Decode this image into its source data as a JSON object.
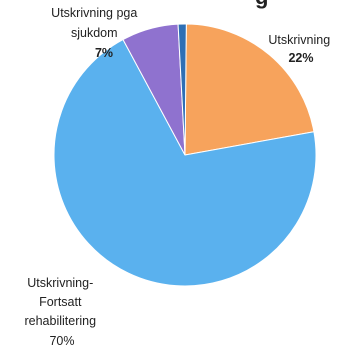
{
  "chart_data": {
    "type": "pie",
    "title": "g",
    "slices": [
      {
        "label": "Utskrivning",
        "percent_label": "22%",
        "value": 22,
        "color": "#f7a35c"
      },
      {
        "label": "Utskrivning- Fortsatt rehabilitering",
        "percent_label": "70%",
        "value": 70,
        "color": "#5ab1ee"
      },
      {
        "label": "Utskrivning pga sjukdom",
        "percent_label": "7%",
        "value": 7,
        "color": "#8f72cf"
      },
      {
        "label": "",
        "percent_label": "",
        "value": 1,
        "color": "#2e6fb5"
      }
    ],
    "label_lines": {
      "s0": [
        "Utskrivning",
        "22%"
      ],
      "s1": [
        "Utskrivning-",
        "Fortsatt",
        "rehabilitering",
        "70%"
      ],
      "s2": [
        "Utskrivning pga",
        "sjukdom",
        "7%"
      ]
    }
  }
}
